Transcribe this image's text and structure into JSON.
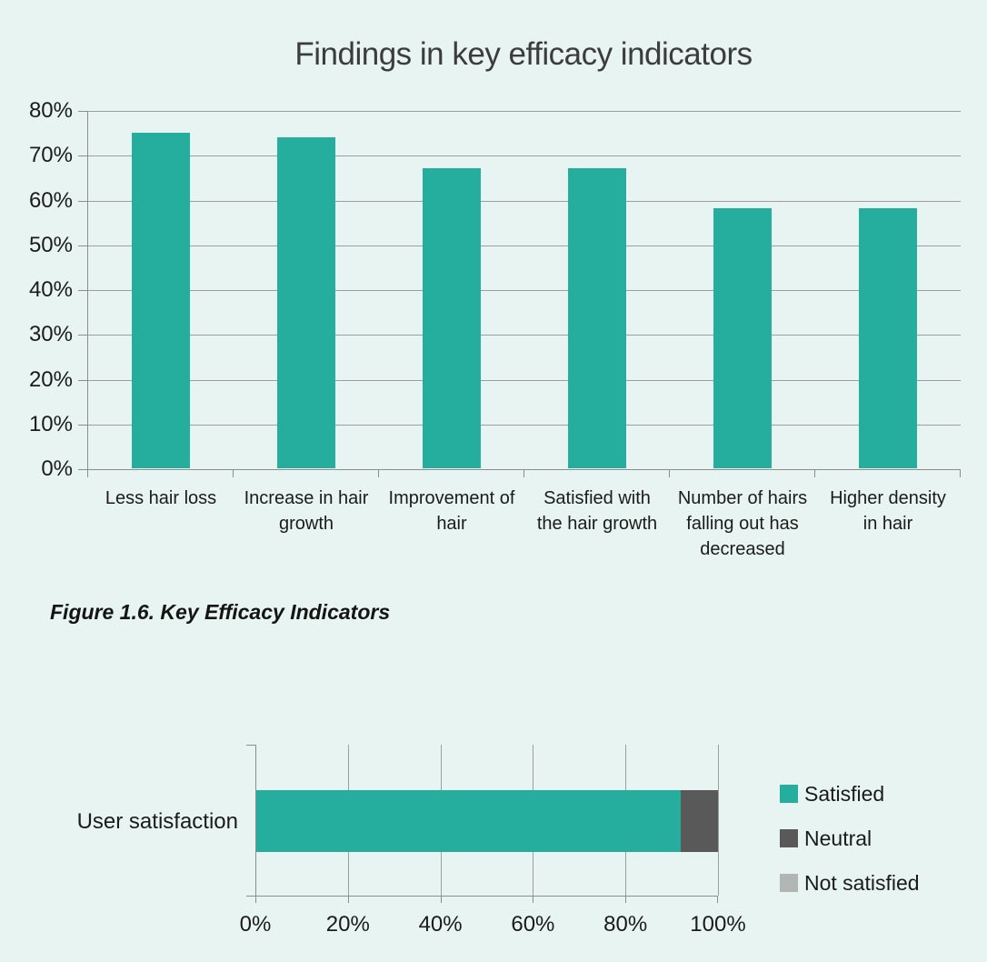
{
  "caption": "Figure 1.6. Key Efficacy Indicators",
  "colors": {
    "background": "#e7f4f1",
    "bar_teal": "#25ae9e",
    "neutral_gray": "#595959",
    "not_satisfied_gray": "#b1b5b3",
    "gridline": "#9aa09e",
    "axis": "#8a8f8e",
    "text": "#1b1b1b",
    "title_text": "#3c3c3c"
  },
  "chart_data": [
    {
      "type": "bar",
      "title": "Findings in key efficacy indicators",
      "categories": [
        "Less hair loss",
        "Increase in hair growth",
        "Improvement of hair",
        "Satisfied with the hair growth",
        "Number of hairs falling out has decreased",
        "Higher density in hair"
      ],
      "tick_labels_wrapped": [
        "Less hair loss",
        "Increase in hair\ngrowth",
        "Improvement of\nhair",
        "Satisfied with\nthe hair growth",
        "Number of hairs\nfalling out has\ndecreased",
        "Higher density\nin hair"
      ],
      "values": [
        75,
        74,
        67,
        67,
        58,
        58
      ],
      "unit": "%",
      "xlabel": "",
      "ylabel": "",
      "ylim": [
        0,
        80
      ],
      "ytick_step": 10,
      "ytick_labels": [
        "0%",
        "10%",
        "20%",
        "30%",
        "40%",
        "50%",
        "60%",
        "70%",
        "80%"
      ],
      "grid": true,
      "legend": false,
      "bar_color": "#25ae9e"
    },
    {
      "type": "bar-horizontal-stacked",
      "title": "",
      "categories": [
        "User satisfaction"
      ],
      "series": [
        {
          "name": "Satisfied",
          "values": [
            92
          ],
          "color": "#25ae9e"
        },
        {
          "name": "Neutral",
          "values": [
            8
          ],
          "color": "#595959"
        },
        {
          "name": "Not satisfied",
          "values": [
            0
          ],
          "color": "#b1b5b3"
        }
      ],
      "unit": "%",
      "xlim": [
        0,
        100
      ],
      "xtick_step": 20,
      "xtick_labels": [
        "0%",
        "20%",
        "40%",
        "60%",
        "80%",
        "100%"
      ],
      "grid": true,
      "legend_position": "right"
    }
  ]
}
